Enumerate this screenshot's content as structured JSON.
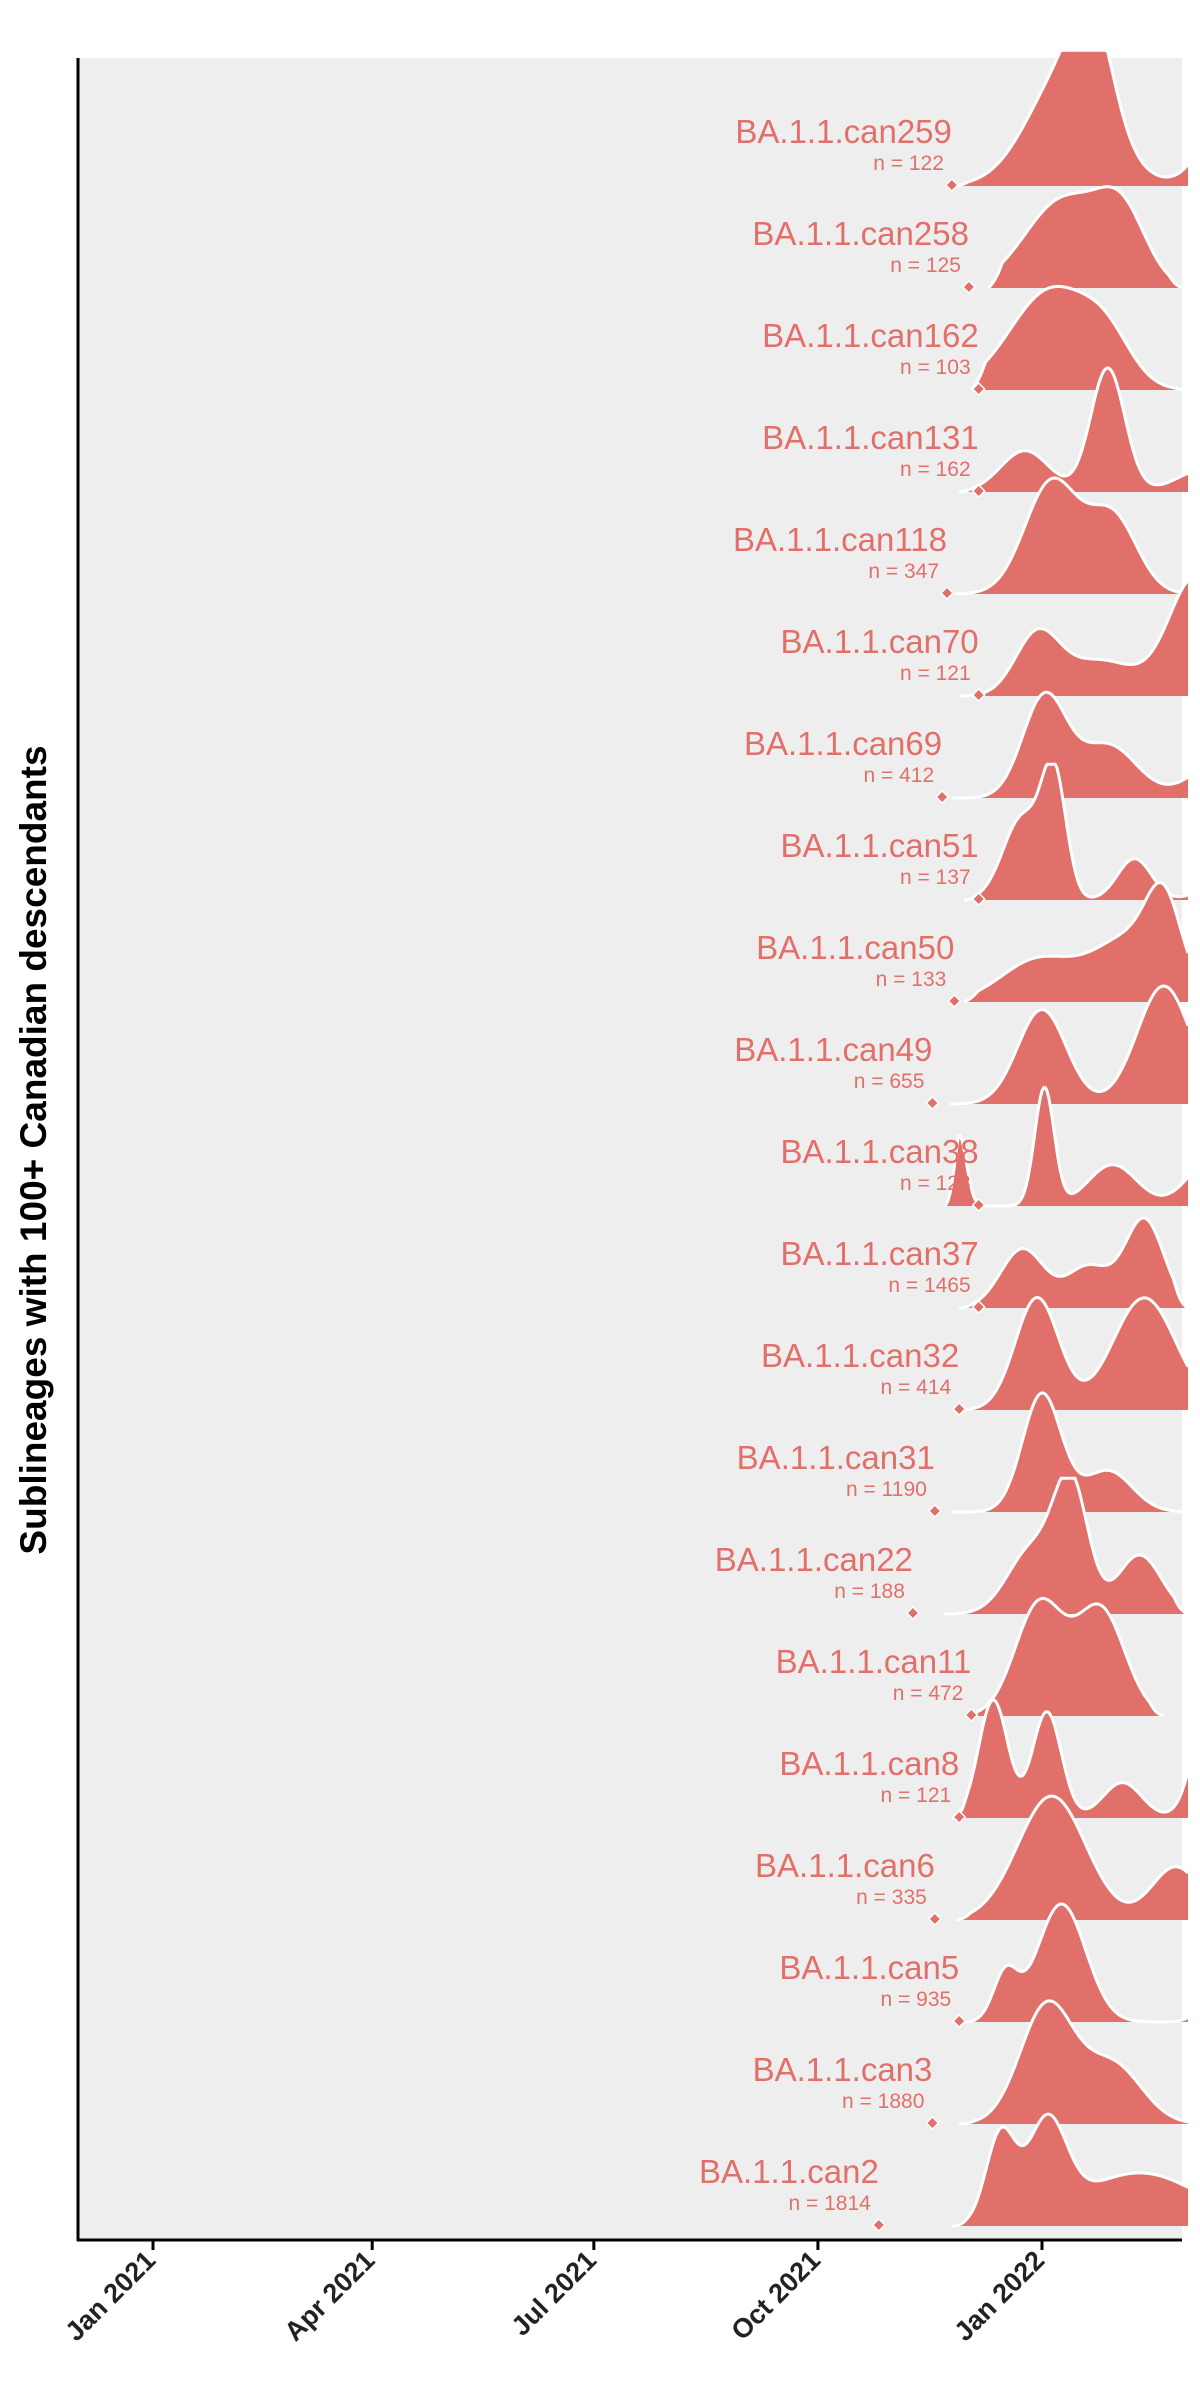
{
  "colors": {
    "fill": "#e2706a",
    "panel": "#eeeeee",
    "outline": "#ffffff",
    "axis": "#000000"
  },
  "chart_data": {
    "type": "ridgeline",
    "title": "",
    "xlabel": "",
    "ylabel": "Sublineages with 100+ Canadian descendants",
    "x_axis": {
      "type": "date",
      "range": [
        "2020-11-20",
        "2022-03-31"
      ],
      "ticks": [
        {
          "date": "2021-01-01",
          "label": "Jan 2021"
        },
        {
          "date": "2021-04-01",
          "label": "Apr 2021"
        },
        {
          "date": "2021-07-01",
          "label": "Jul 2021"
        },
        {
          "date": "2021-10-01",
          "label": "Oct 2021"
        },
        {
          "date": "2022-01-01",
          "label": "Jan 2022"
        }
      ]
    },
    "grid": false,
    "legend": "none",
    "series": [
      {
        "name": "BA.1.1.can259",
        "n_label": "n =  122",
        "origin": "2021-11-25",
        "start": "2021-11-26",
        "end": "2022-03-31",
        "peaks": [
          [
            "2022-01-12",
            1.0,
            16
          ],
          [
            "2022-01-22",
            0.7,
            8
          ],
          [
            "2022-03-25",
            1.1,
            12
          ]
        ]
      },
      {
        "name": "BA.1.1.can258",
        "n_label": "n =  125",
        "origin": "2021-12-02",
        "start": "2021-12-10",
        "end": "2022-02-28",
        "peaks": [
          [
            "2022-01-10",
            0.75,
            16
          ],
          [
            "2022-02-03",
            0.55,
            10
          ]
        ]
      },
      {
        "name": "BA.1.1.can162",
        "n_label": "n =  103",
        "origin": "2021-12-06",
        "start": "2021-12-03",
        "end": "2022-03-10",
        "peaks": [
          [
            "2022-01-05",
            0.85,
            17
          ],
          [
            "2022-01-28",
            0.3,
            10
          ]
        ]
      },
      {
        "name": "BA.1.1.can131",
        "n_label": "n =  162",
        "origin": "2021-12-06",
        "start": "2021-11-28",
        "end": "2022-03-31",
        "peaks": [
          [
            "2021-12-25",
            0.35,
            10
          ],
          [
            "2022-01-28",
            1.05,
            7
          ],
          [
            "2022-03-10",
            0.2,
            12
          ]
        ]
      },
      {
        "name": "BA.1.1.can118",
        "n_label": "n =  347",
        "origin": "2021-11-23",
        "start": "2021-11-26",
        "end": "2022-03-31",
        "peaks": [
          [
            "2022-01-05",
            0.95,
            11
          ],
          [
            "2022-01-30",
            0.65,
            10
          ]
        ]
      },
      {
        "name": "BA.1.1.can70",
        "n_label": "n =  121",
        "origin": "2021-12-06",
        "start": "2021-11-28",
        "end": "2022-03-31",
        "peaks": [
          [
            "2021-12-30",
            0.5,
            9
          ],
          [
            "2022-01-25",
            0.3,
            15
          ],
          [
            "2022-03-05",
            1.0,
            11
          ]
        ]
      },
      {
        "name": "BA.1.1.can69",
        "n_label": "n =  412",
        "origin": "2021-11-21",
        "start": "2021-11-25",
        "end": "2022-03-31",
        "peaks": [
          [
            "2022-01-02",
            0.85,
            9
          ],
          [
            "2022-01-28",
            0.45,
            12
          ],
          [
            "2022-03-15",
            0.3,
            12
          ]
        ]
      },
      {
        "name": "BA.1.1.can51",
        "n_label": "n =  137",
        "origin": "2021-12-06",
        "start": "2021-11-30",
        "end": "2022-03-31",
        "peaks": [
          [
            "2021-12-24",
            0.7,
            8
          ],
          [
            "2022-01-06",
            1.0,
            5
          ],
          [
            "2022-02-08",
            0.35,
            7
          ],
          [
            "2022-03-15",
            0.15,
            8
          ]
        ]
      },
      {
        "name": "BA.1.1.can50",
        "n_label": "n =  133",
        "origin": "2021-11-26",
        "start": "2021-11-30",
        "end": "2022-03-31",
        "peaks": [
          [
            "2021-12-30",
            0.35,
            15
          ],
          [
            "2022-02-07",
            0.55,
            16
          ],
          [
            "2022-02-20",
            0.6,
            7
          ]
        ]
      },
      {
        "name": "BA.1.1.can49",
        "n_label": "n =  655",
        "origin": "2021-11-17",
        "start": "2021-11-24",
        "end": "2022-03-31",
        "peaks": [
          [
            "2022-01-01",
            0.8,
            10
          ],
          [
            "2022-02-20",
            1.0,
            11
          ]
        ]
      },
      {
        "name": "BA.1.1.can38",
        "n_label": "n =  123",
        "origin": "2021-12-06",
        "start": "2021-11-22",
        "end": "2022-03-31",
        "peaks": [
          [
            "2021-11-28",
            0.6,
            3
          ],
          [
            "2022-01-02",
            1.0,
            4
          ],
          [
            "2022-01-30",
            0.35,
            10
          ],
          [
            "2022-03-12",
            0.4,
            10
          ]
        ]
      },
      {
        "name": "BA.1.1.can37",
        "n_label": "n =  1465",
        "origin": "2021-12-06",
        "start": "2021-11-28",
        "end": "2022-03-10",
        "peaks": [
          [
            "2021-12-24",
            0.5,
            9
          ],
          [
            "2022-01-20",
            0.35,
            9
          ],
          [
            "2022-02-12",
            0.75,
            8
          ]
        ]
      },
      {
        "name": "BA.1.1.can32",
        "n_label": "n =  414",
        "origin": "2021-11-28",
        "start": "2021-11-27",
        "end": "2022-03-31",
        "peaks": [
          [
            "2021-12-30",
            0.95,
            9
          ],
          [
            "2022-02-12",
            0.95,
            13
          ]
        ]
      },
      {
        "name": "BA.1.1.can31",
        "n_label": "n =  1190",
        "origin": "2021-11-18",
        "start": "2021-11-25",
        "end": "2022-03-10",
        "peaks": [
          [
            "2022-01-01",
            1.0,
            8
          ],
          [
            "2022-01-28",
            0.35,
            10
          ]
        ]
      },
      {
        "name": "BA.1.1.can22",
        "n_label": "n =  188",
        "origin": "2021-11-09",
        "start": "2021-11-22",
        "end": "2022-03-20",
        "peaks": [
          [
            "2021-12-28",
            0.55,
            10
          ],
          [
            "2022-01-13",
            1.05,
            7
          ],
          [
            "2022-02-10",
            0.5,
            9
          ]
        ]
      },
      {
        "name": "BA.1.1.can11",
        "n_label": "n =  472",
        "origin": "2021-12-03",
        "start": "2021-11-30",
        "end": "2022-02-20",
        "peaks": [
          [
            "2021-12-31",
            0.95,
            10
          ],
          [
            "2022-01-25",
            0.9,
            10
          ]
        ]
      },
      {
        "name": "BA.1.1.can8",
        "n_label": "n =  121",
        "origin": "2021-11-28",
        "start": "2021-11-25",
        "end": "2022-03-31",
        "peaks": [
          [
            "2021-12-12",
            1.0,
            6
          ],
          [
            "2022-01-03",
            0.9,
            6
          ],
          [
            "2022-02-03",
            0.3,
            8
          ],
          [
            "2022-03-12",
            1.1,
            7
          ]
        ]
      },
      {
        "name": "BA.1.1.can6",
        "n_label": "n =  335",
        "origin": "2021-11-18",
        "start": "2021-11-27",
        "end": "2022-03-31",
        "peaks": [
          [
            "2022-01-05",
            1.05,
            14
          ],
          [
            "2022-02-25",
            0.45,
            10
          ]
        ]
      },
      {
        "name": "BA.1.1.can5",
        "n_label": "n =  935",
        "origin": "2021-11-28",
        "start": "2021-11-29",
        "end": "2022-03-31",
        "peaks": [
          [
            "2021-12-17",
            0.4,
            5
          ],
          [
            "2022-01-09",
            1.0,
            10
          ],
          [
            "2022-03-14",
            0.3,
            6
          ]
        ]
      },
      {
        "name": "BA.1.1.can3",
        "n_label": "n =  1880",
        "origin": "2021-11-17",
        "start": "2021-11-28",
        "end": "2022-03-31",
        "peaks": [
          [
            "2022-01-03",
            1.0,
            11
          ],
          [
            "2022-01-30",
            0.5,
            12
          ]
        ]
      },
      {
        "name": "BA.1.1.can2",
        "n_label": "n =  1814",
        "origin": "2021-10-26",
        "start": "2021-11-25",
        "end": "2022-03-31",
        "peaks": [
          [
            "2021-12-15",
            0.75,
            6
          ],
          [
            "2022-01-03",
            0.8,
            8
          ],
          [
            "2022-02-10",
            0.45,
            25
          ]
        ]
      }
    ]
  }
}
